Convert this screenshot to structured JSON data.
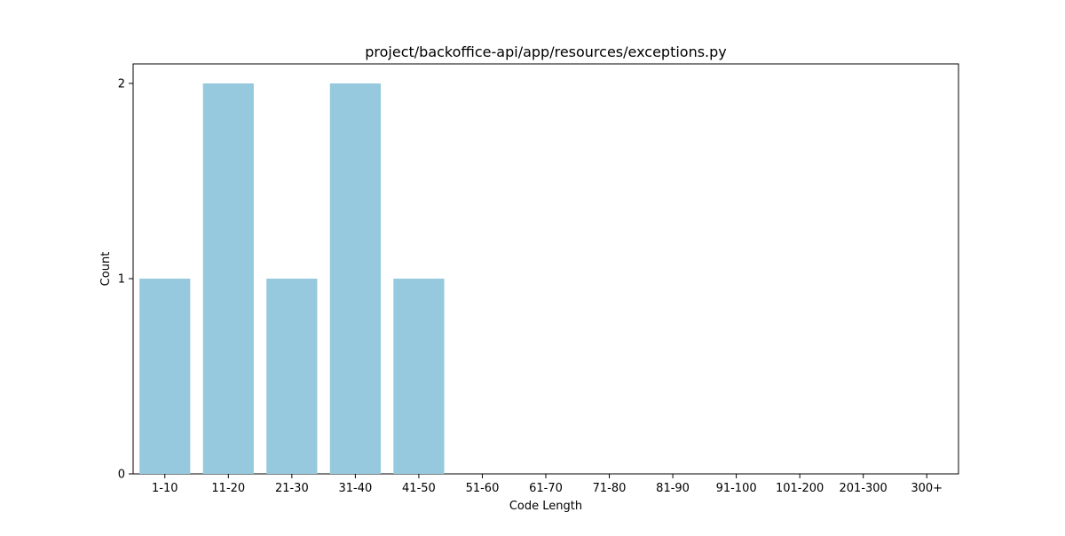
{
  "chart_data": {
    "type": "bar",
    "title": "project/backoffice-api/app/resources/exceptions.py",
    "xlabel": "Code Length",
    "ylabel": "Count",
    "categories": [
      "1-10",
      "11-20",
      "21-30",
      "31-40",
      "41-50",
      "51-60",
      "61-70",
      "71-80",
      "81-90",
      "91-100",
      "101-200",
      "201-300",
      "300+"
    ],
    "values": [
      1,
      2,
      1,
      2,
      1,
      0,
      0,
      0,
      0,
      0,
      0,
      0,
      0
    ],
    "ylim": [
      0,
      2.1
    ],
    "yticks": [
      0,
      1,
      2
    ],
    "grid": false,
    "legend": "none",
    "colors": {
      "bar": "#96c9de",
      "axis": "#000000",
      "background": "#ffffff"
    }
  }
}
